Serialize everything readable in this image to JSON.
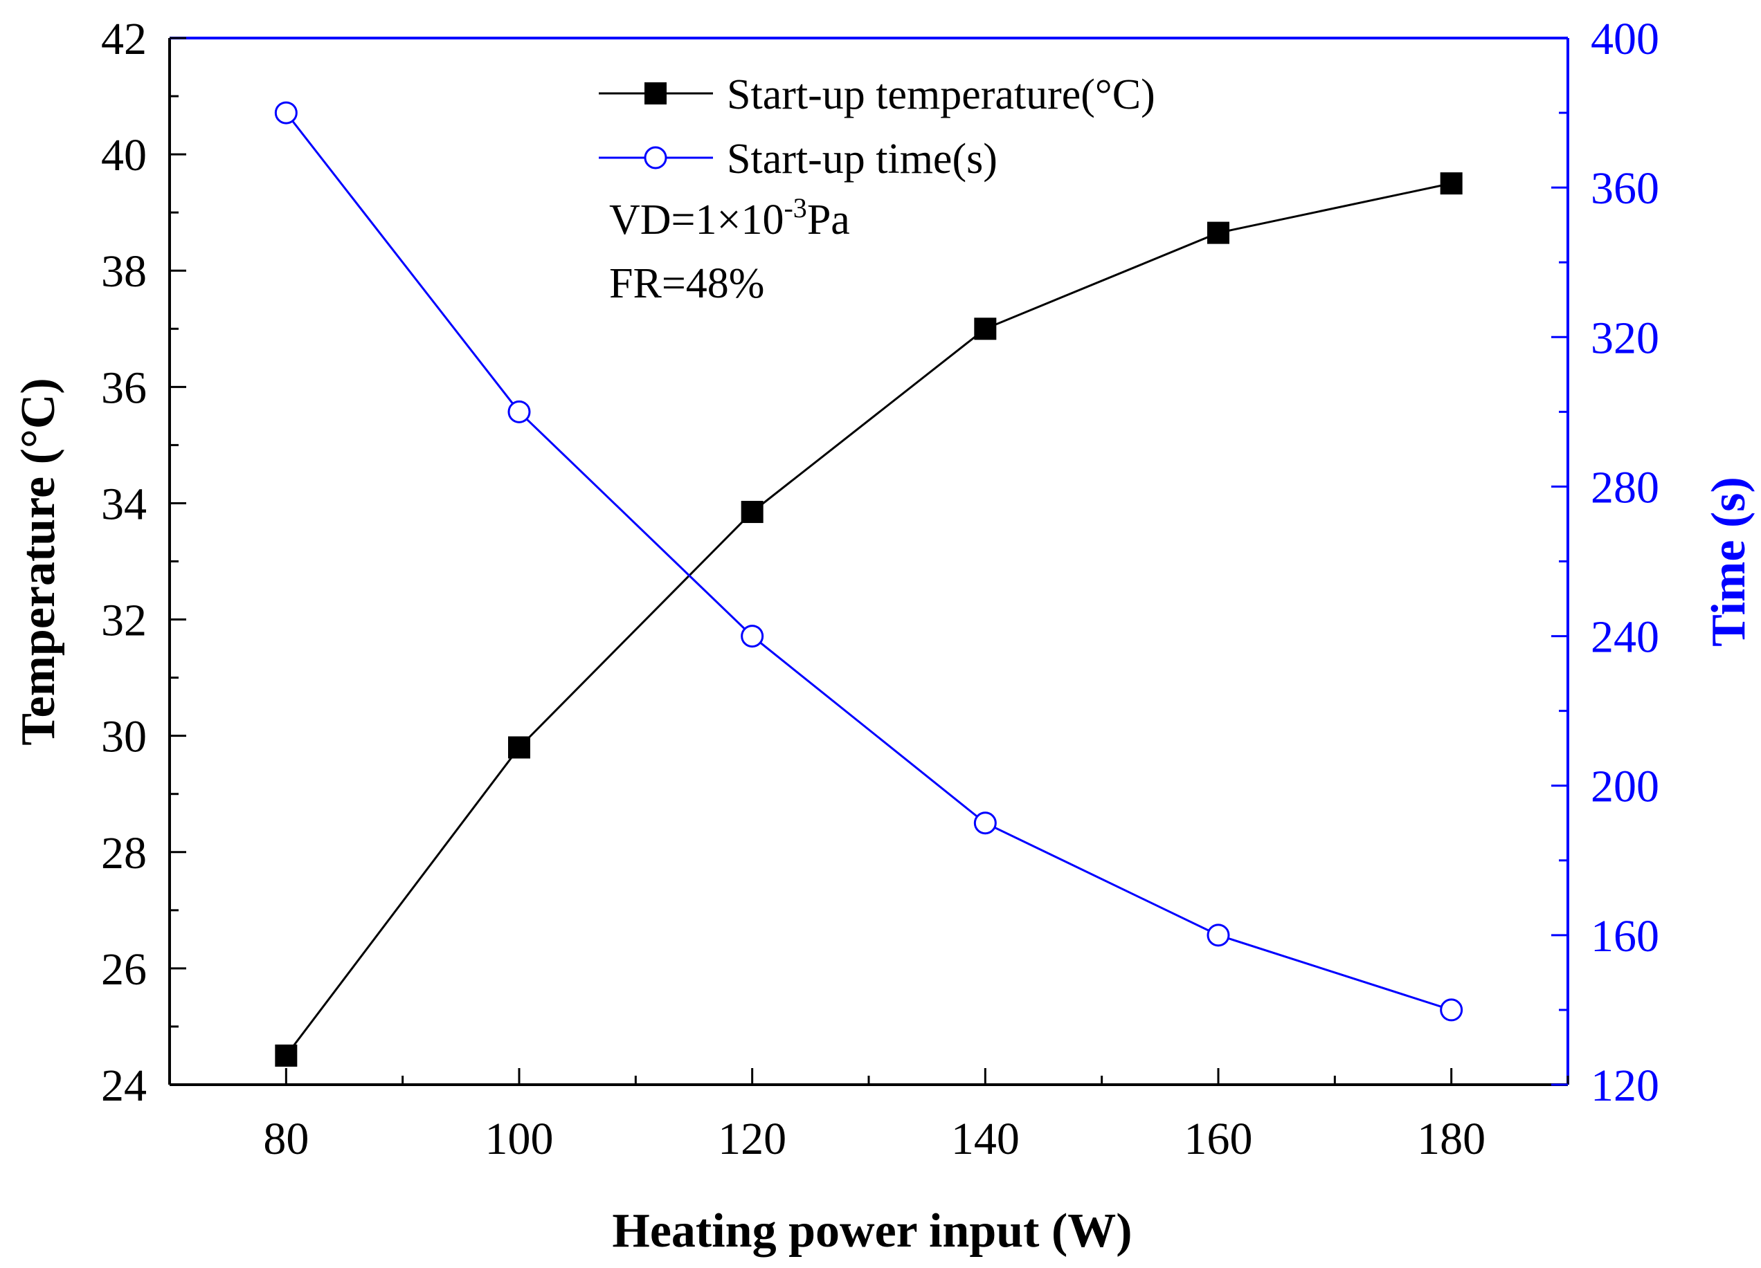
{
  "chart_data": {
    "type": "line",
    "x": [
      80,
      100,
      120,
      140,
      160,
      180
    ],
    "xlabel": "Heating power input (W)",
    "ylabel_left": "Temperature (°C)",
    "ylabel_right": "Time (s)",
    "xlim": [
      70,
      190
    ],
    "ylim_left": [
      24,
      42
    ],
    "ylim_right": [
      120,
      400
    ],
    "x_ticks": [
      "80",
      "100",
      "120",
      "140",
      "160",
      "180"
    ],
    "y_left_ticks": [
      "24",
      "26",
      "28",
      "30",
      "32",
      "34",
      "36",
      "38",
      "40",
      "42"
    ],
    "y_right_ticks": [
      "120",
      "160",
      "200",
      "240",
      "280",
      "320",
      "360",
      "400"
    ],
    "series": [
      {
        "name": "Start-up temperature(°C)",
        "axis": "left",
        "marker": "filled-square",
        "color": "#000000",
        "values": [
          24.5,
          29.8,
          33.85,
          37.0,
          38.65,
          39.5
        ]
      },
      {
        "name": "Start-up time(s)",
        "axis": "right",
        "marker": "open-circle",
        "color": "#0000ff",
        "values": [
          380,
          300,
          240,
          190,
          160,
          140
        ]
      }
    ],
    "legend_position": "top-center",
    "annotations": {
      "vd_prefix": "VD=1×10",
      "vd_exponent": "-3",
      "vd_unit": "Pa",
      "fr": "FR=48%"
    },
    "grid": false
  }
}
